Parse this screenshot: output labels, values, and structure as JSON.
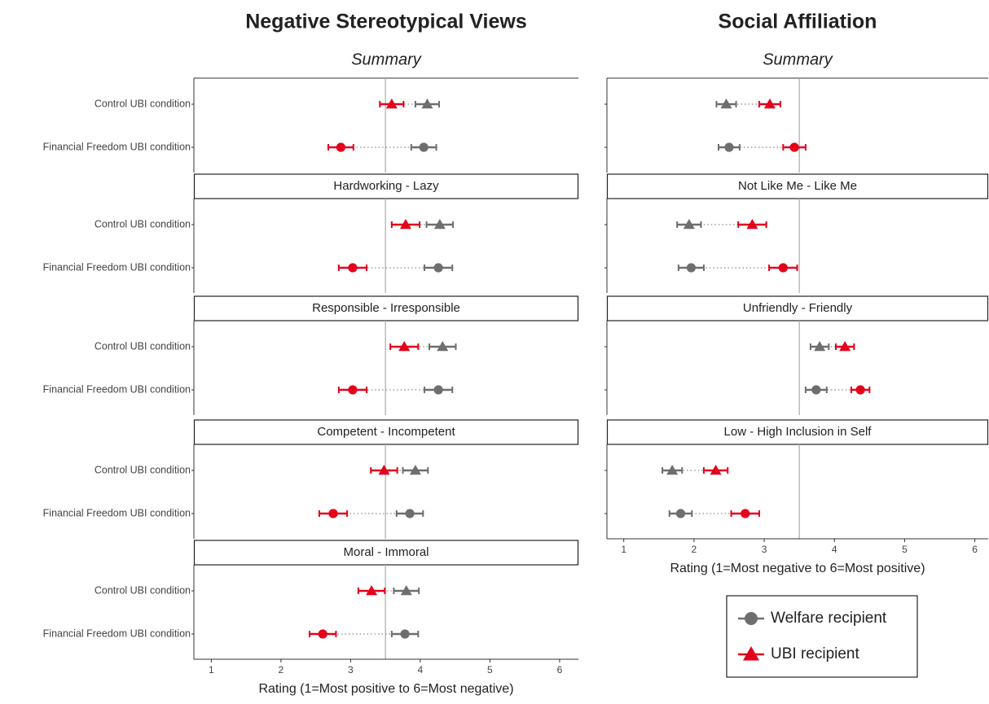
{
  "chart_data": [
    {
      "type": "dot",
      "title": "Negative Stereotypical Views",
      "xlabel": "Rating (1=Most positive to 6=Most negative)",
      "xlim": [
        0.75,
        6.27
      ],
      "xticks": [
        1,
        2,
        3,
        4,
        5,
        6
      ],
      "refline": 3.5,
      "categories": [
        "Control UBI condition",
        "Financial Freedom UBI condition"
      ],
      "markers": [
        "triangle",
        "circle"
      ],
      "series": [
        {
          "name": "Welfare recipient",
          "color": "#6e6e6e"
        },
        {
          "name": "UBI recipient",
          "color": "#e3001b"
        }
      ],
      "facets": [
        {
          "title": "Summary",
          "values": [
            [
              4.1,
              4.05
            ],
            [
              3.59,
              2.86
            ]
          ],
          "errors": [
            [
              0.17,
              0.18
            ],
            [
              0.17,
              0.18
            ]
          ]
        },
        {
          "title": "Hardworking - Lazy",
          "values": [
            [
              4.28,
              4.26
            ],
            [
              3.79,
              3.03
            ]
          ],
          "errors": [
            [
              0.19,
              0.2
            ],
            [
              0.2,
              0.2
            ]
          ]
        },
        {
          "title": "Responsible - Irresponsible",
          "values": [
            [
              4.32,
              4.26
            ],
            [
              3.77,
              3.03
            ]
          ],
          "errors": [
            [
              0.19,
              0.2
            ],
            [
              0.2,
              0.2
            ]
          ]
        },
        {
          "title": "Competent - Incompetent",
          "values": [
            [
              3.93,
              3.85
            ],
            [
              3.48,
              2.75
            ]
          ],
          "errors": [
            [
              0.18,
              0.19
            ],
            [
              0.19,
              0.2
            ]
          ]
        },
        {
          "title": "Moral - Immoral",
          "values": [
            [
              3.8,
              3.78
            ],
            [
              3.3,
              2.6
            ]
          ],
          "errors": [
            [
              0.18,
              0.19
            ],
            [
              0.19,
              0.19
            ]
          ]
        }
      ]
    },
    {
      "type": "dot",
      "title": "Social Affiliation",
      "xlabel": "Rating (1=Most negative to 6=Most positive)",
      "xlim": [
        0.76,
        6.19
      ],
      "xticks": [
        1,
        2,
        3,
        4,
        5,
        6
      ],
      "refline": 3.5,
      "categories": [
        "Control UBI condition",
        "Financial Freedom UBI condition"
      ],
      "markers": [
        "triangle",
        "circle"
      ],
      "series": [
        {
          "name": "Welfare recipient",
          "color": "#6e6e6e"
        },
        {
          "name": "UBI recipient",
          "color": "#e3001b"
        }
      ],
      "facets": [
        {
          "title": "Summary",
          "values": [
            [
              2.46,
              2.5
            ],
            [
              3.08,
              3.43
            ]
          ],
          "errors": [
            [
              0.14,
              0.15
            ],
            [
              0.15,
              0.16
            ]
          ]
        },
        {
          "title": "Not Like Me - Like Me",
          "values": [
            [
              1.93,
              1.96
            ],
            [
              2.83,
              3.27
            ]
          ],
          "errors": [
            [
              0.17,
              0.18
            ],
            [
              0.2,
              0.2
            ]
          ]
        },
        {
          "title": "Unfriendly - Friendly",
          "values": [
            [
              3.79,
              3.74
            ],
            [
              4.15,
              4.37
            ]
          ],
          "errors": [
            [
              0.13,
              0.15
            ],
            [
              0.13,
              0.13
            ]
          ]
        },
        {
          "title": "Low - High Inclusion in Self",
          "values": [
            [
              1.69,
              1.81
            ],
            [
              2.31,
              2.73
            ]
          ],
          "errors": [
            [
              0.14,
              0.16
            ],
            [
              0.17,
              0.2
            ]
          ]
        }
      ]
    }
  ]
}
